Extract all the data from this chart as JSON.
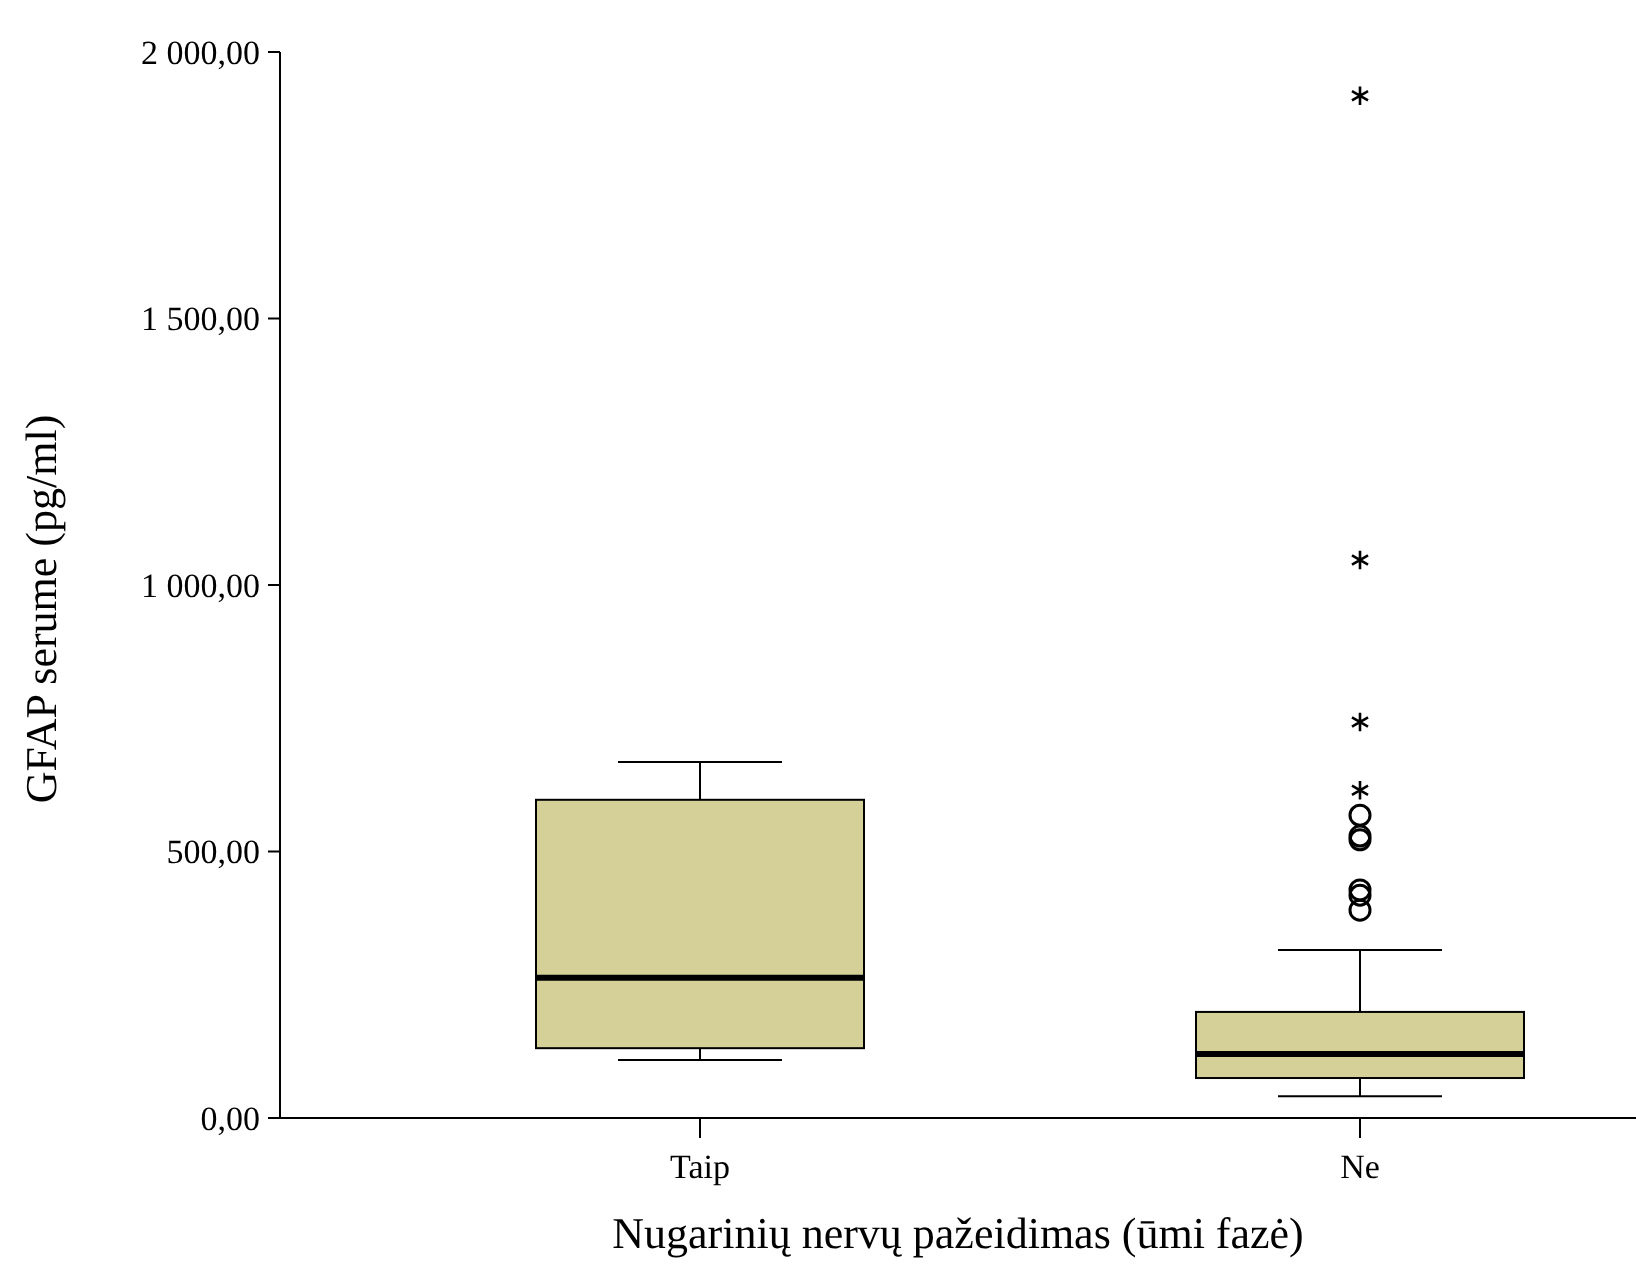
{
  "chart_data": {
    "type": "box",
    "xlabel": "Nugarinių nervų pažeidimas (ūmi fazė)",
    "ylabel": "GFAP serume (pg/ml)",
    "categories": [
      "Taip",
      "Ne"
    ],
    "color": "#d5cf98",
    "boxes": [
      {
        "low": 109,
        "q1": 131,
        "median": 263,
        "q3": 597,
        "high": 668
      },
      {
        "low": 41,
        "q1": 75,
        "median": 120,
        "q3": 199,
        "high": 315,
        "outliers": [
          390,
          418,
          428,
          522,
          529,
          568,
          615,
          743,
          1047,
          1918
        ]
      }
    ],
    "ylim": [
      0,
      2000
    ],
    "yticks": [
      {
        "value": 0,
        "label": "0,00"
      },
      {
        "value": 500,
        "label": "500,00"
      },
      {
        "value": 1000,
        "label": "1 000,00"
      },
      {
        "value": 1500,
        "label": "1 500,00"
      },
      {
        "value": 2000,
        "label": "2 000,00"
      }
    ],
    "grid": false
  }
}
